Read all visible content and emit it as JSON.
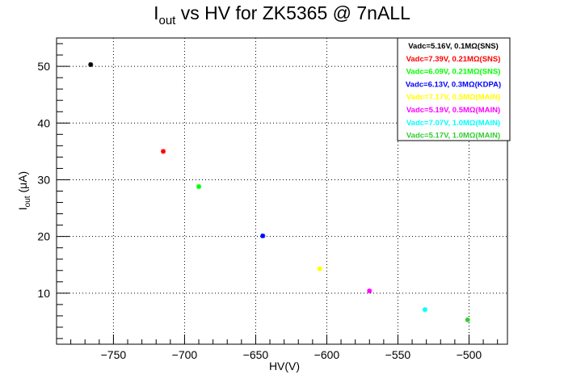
{
  "chart_data": {
    "type": "scatter",
    "title": {
      "main": "I",
      "sub": "out",
      "rest": " vs HV for ZK5365 @ 7nALL"
    },
    "xlabel": "HV(V)",
    "ylabel": {
      "main": "I",
      "sub": "out",
      "rest": " (μA)"
    },
    "xlim": [
      -790,
      -473
    ],
    "ylim": [
      1,
      55
    ],
    "x_ticks": [
      -750,
      -700,
      -650,
      -600,
      -550,
      -500
    ],
    "x_tick_labels": [
      "−750",
      "−700",
      "−650",
      "−600",
      "−550",
      "−500"
    ],
    "y_ticks": [
      10,
      20,
      30,
      40,
      50
    ],
    "y_tick_labels": [
      "10",
      "20",
      "30",
      "40",
      "50"
    ],
    "grid": true,
    "grid_style": "dotted",
    "legend_position": "top-right",
    "series": [
      {
        "name": "Vadc=5.16V, 0.1MΩ(SNS)",
        "color": "#000000",
        "x": [
          -766
        ],
        "y": [
          50.3
        ]
      },
      {
        "name": "Vadc=7.39V, 0.21MΩ(SNS)",
        "color": "#ff0000",
        "x": [
          -715
        ],
        "y": [
          35.0
        ]
      },
      {
        "name": "Vadc=6.09V, 0.21MΩ(SNS)",
        "color": "#00ff00",
        "x": [
          -690
        ],
        "y": [
          28.8
        ]
      },
      {
        "name": "Vadc=6.13V, 0.3MΩ(KDPA)",
        "color": "#0000ff",
        "x": [
          -645
        ],
        "y": [
          20.1
        ]
      },
      {
        "name": "Vadc=7.17V, 0.5MΩ(MAIN)",
        "color": "#ffff00",
        "x": [
          -605
        ],
        "y": [
          14.3
        ]
      },
      {
        "name": "Vadc=5.19V, 0.5MΩ(MAIN)",
        "color": "#ff00ff",
        "x": [
          -570
        ],
        "y": [
          10.4
        ]
      },
      {
        "name": "Vadc=7.07V, 1.0MΩ(MAIN)",
        "color": "#00ffff",
        "x": [
          -531
        ],
        "y": [
          7.1
        ]
      },
      {
        "name": "Vadc=5.17V, 1.0MΩ(MAIN)",
        "color": "#33cc33",
        "x": [
          -501
        ],
        "y": [
          5.3
        ]
      }
    ]
  }
}
